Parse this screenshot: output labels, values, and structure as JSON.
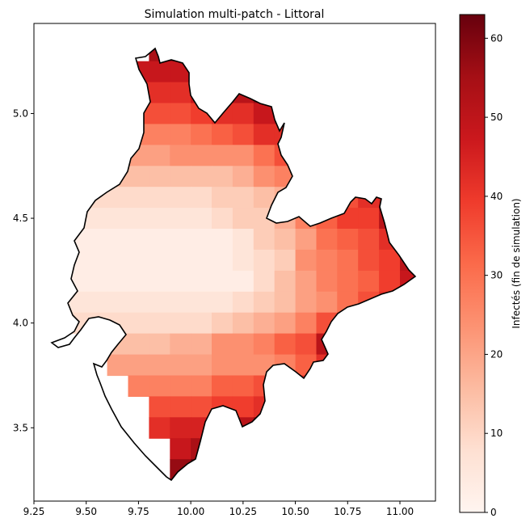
{
  "chart_data": {
    "type": "heatmap",
    "title": "Simulation multi-patch - Littoral",
    "xlabel": "",
    "ylabel": "",
    "xlim": [
      9.25,
      11.17
    ],
    "ylim": [
      3.15,
      5.43
    ],
    "x_ticks": [
      "9.25",
      "9.50",
      "9.75",
      "10.00",
      "10.25",
      "10.50",
      "10.75",
      "11.00"
    ],
    "x_tick_values": [
      9.25,
      9.5,
      9.75,
      10.0,
      10.25,
      10.5,
      10.75,
      11.0
    ],
    "y_ticks": [
      "3.5",
      "4.0",
      "4.5",
      "5.0"
    ],
    "y_tick_values": [
      3.5,
      4.0,
      4.5,
      5.0
    ],
    "grid": false,
    "colormap": "Reds",
    "colorbar": {
      "label": "Infectés (fin de simulation)",
      "min": 0,
      "max": 63,
      "ticks": [
        "0",
        "10",
        "20",
        "30",
        "40",
        "50",
        "60"
      ],
      "tick_values": [
        0,
        10,
        20,
        30,
        40,
        50,
        60
      ]
    },
    "cell_size": 0.1,
    "x0": 9.3,
    "y0": 3.25,
    "rows": [
      "...................",
      "......cc...........",
      ".....dcc...........",
      "....fffcc..........",
      "....hhhffecc.......",
      "...kjjjihhfeeb.....",
      "...mmmmlkjhhgeed...",
      "..oooonnnnljhgfed..",
      "..qqqqqqqpnmkihgfc.",
      ".sssssssrrqpmljhgd.",
      "ttttttttsrrpmkiied.",
      "uuuuuuuuutrqolkjhd.",
      "uuuuuuuuutsrnmljie.",
      "uuuuuuuuuusqomlkif.",
      "tttttttttsrqonljhd.",
      "ssssssssrqpomjhcaa.",
      "..qqqqppnnmkjeb....",
      "...ooooonnnmkhb....",
      "....mmmmkkjjhecb...",
      ".....jjjiihdbab....",
      ".....hgggeca.......",
      "......fdca.........",
      "......ca..........."
    ]
  }
}
